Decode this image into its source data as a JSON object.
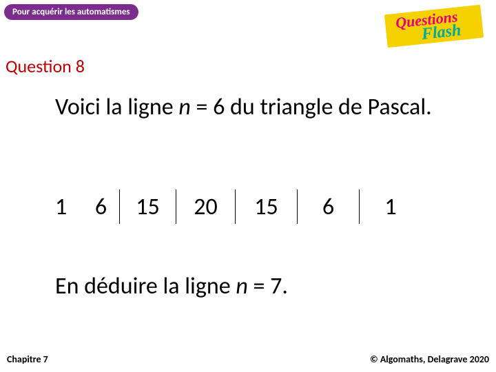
{
  "badge": {
    "text": "Pour acquérir les automatismes"
  },
  "logo": {
    "line1": "Questions",
    "line2": "Flash"
  },
  "question": {
    "label": "Question 8"
  },
  "statement": {
    "before_var": "Voici la ligne ",
    "var": "n",
    "after_var": " = 6 du triangle de Pascal."
  },
  "pascal": {
    "cells": [
      "1",
      "6",
      "15",
      "20",
      "15",
      "6",
      "1"
    ]
  },
  "deduce": {
    "before_var": "En déduire la ligne ",
    "var": "n",
    "after_var": " = 7."
  },
  "footer": {
    "chapter": "Chapitre 7",
    "copyright": "© Algomaths, Delagrave 2020"
  },
  "colors": {
    "badge_bg": "#7b2d8e",
    "question_color": "#c00000",
    "flash_bg": "#f5d100",
    "flash_pink": "#e6007e",
    "flash_teal": "#00a99d"
  }
}
